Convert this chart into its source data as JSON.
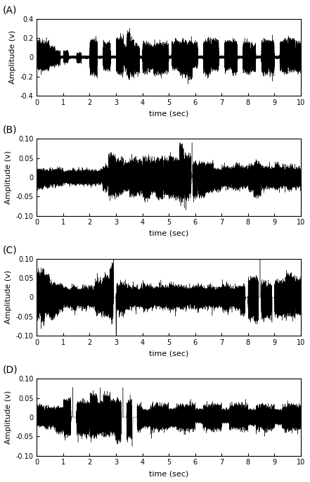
{
  "panels": [
    "A",
    "B",
    "C",
    "D"
  ],
  "panel_A": {
    "ylim": [
      -0.4,
      0.4
    ],
    "yticks": [
      -0.4,
      -0.2,
      0,
      0.2,
      0.4
    ],
    "ylabel": "Amplitude (v)",
    "xlabel": "time (sec)",
    "xlim": [
      0,
      10
    ],
    "xticks": [
      0,
      1,
      2,
      3,
      4,
      5,
      6,
      7,
      8,
      9,
      10
    ]
  },
  "panel_B": {
    "ylim": [
      -0.1,
      0.1
    ],
    "yticks": [
      -0.1,
      -0.05,
      0,
      0.05,
      0.1
    ],
    "ylabel": "Amplitude (v)",
    "xlabel": "time (sec)",
    "xlim": [
      0,
      10
    ],
    "xticks": [
      0,
      1,
      2,
      3,
      4,
      5,
      6,
      7,
      8,
      9,
      10
    ]
  },
  "panel_C": {
    "ylim": [
      -0.1,
      0.1
    ],
    "yticks": [
      -0.1,
      -0.05,
      0,
      0.05,
      0.1
    ],
    "ylabel": "Amplitude (v)",
    "xlabel": "time (sec)",
    "xlim": [
      0,
      10
    ],
    "xticks": [
      0,
      1,
      2,
      3,
      4,
      5,
      6,
      7,
      8,
      9,
      10
    ]
  },
  "panel_D": {
    "ylim": [
      -0.1,
      0.1
    ],
    "yticks": [
      -0.1,
      -0.05,
      0,
      0.05,
      0.1
    ],
    "ylabel": "Amplitude (v)",
    "xlabel": "time (sec)",
    "xlim": [
      0,
      10
    ],
    "xticks": [
      0,
      1,
      2,
      3,
      4,
      5,
      6,
      7,
      8,
      9,
      10
    ]
  },
  "line_color": "#000000",
  "line_width": 0.3,
  "background_color": "#ffffff",
  "label_fontsize": 8,
  "tick_fontsize": 7,
  "panel_label_fontsize": 10
}
